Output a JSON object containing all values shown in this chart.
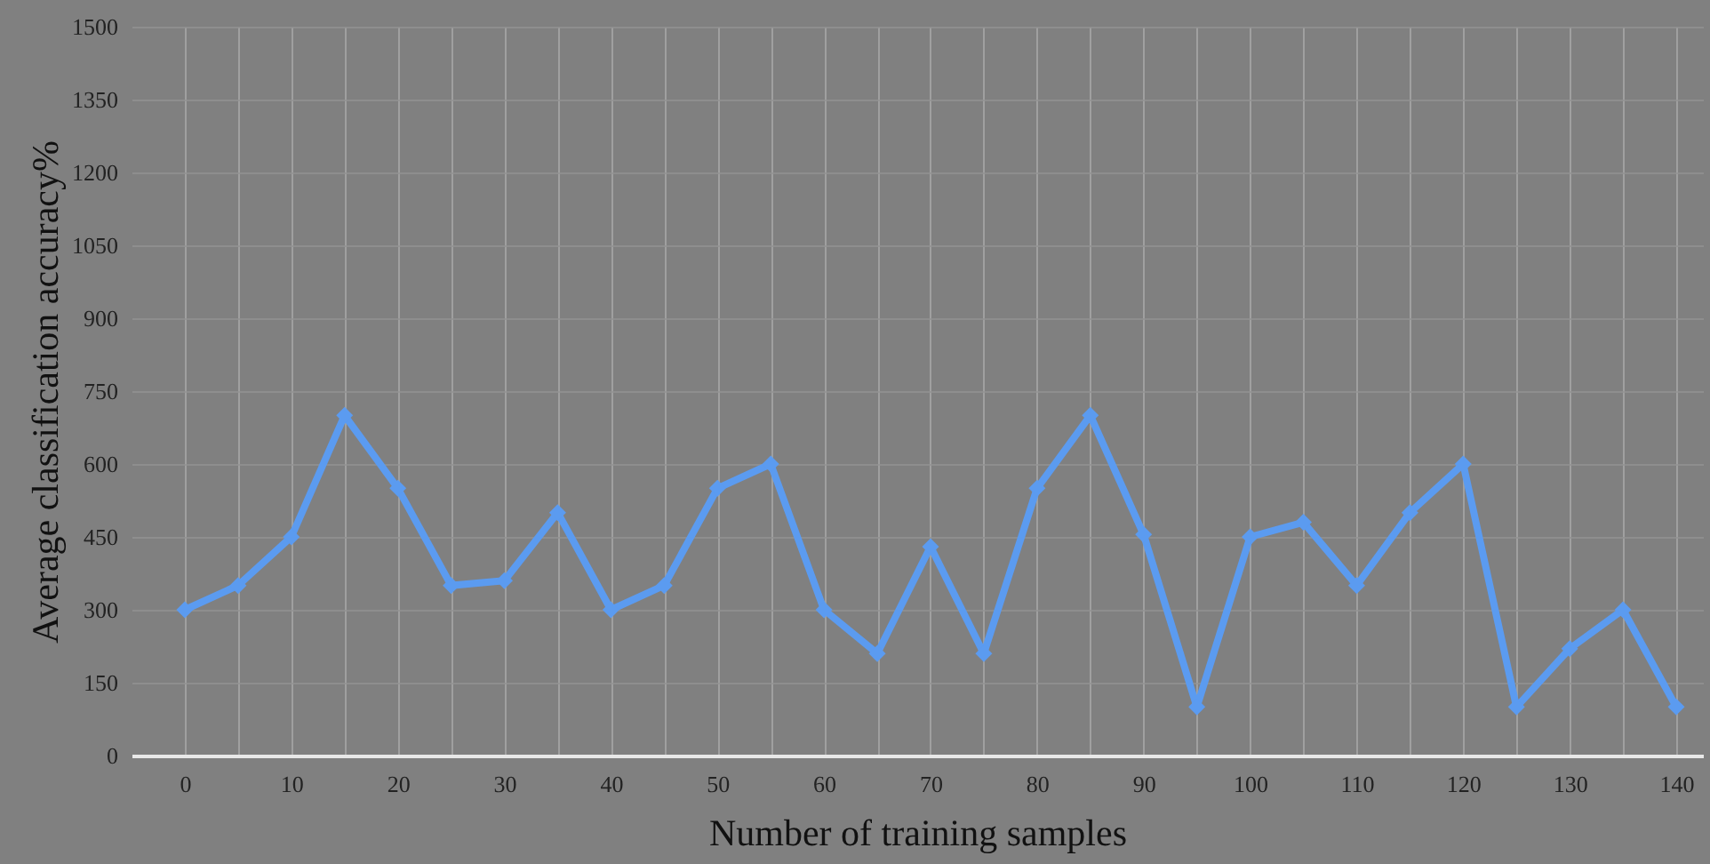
{
  "chart_data": {
    "type": "line",
    "xlabel": "Number of training samples",
    "ylabel": "Average classification accuracy%",
    "x": [
      0,
      5,
      10,
      15,
      20,
      25,
      30,
      35,
      40,
      45,
      50,
      55,
      60,
      65,
      70,
      75,
      80,
      85,
      90,
      95,
      100,
      105,
      110,
      115,
      120,
      125,
      130,
      135,
      140
    ],
    "series": [
      {
        "color": "#5b9bf0",
        "values": [
          300,
          350,
          450,
          700,
          550,
          350,
          360,
          500,
          300,
          350,
          550,
          600,
          300,
          210,
          430,
          210,
          550,
          700,
          455,
          100,
          450,
          480,
          350,
          500,
          600,
          100,
          220,
          300,
          100
        ]
      }
    ],
    "xlim": [
      -5,
      142.5
    ],
    "xticks": [
      0,
      {
        "value": 5,
        "label": null
      },
      10,
      {
        "value": 15,
        "label": null
      },
      20,
      {
        "value": 25,
        "label": null
      },
      30,
      {
        "value": 35,
        "label": null
      },
      40,
      {
        "value": 45,
        "label": null
      },
      50,
      {
        "value": 55,
        "label": null
      },
      60,
      {
        "value": 65,
        "label": null
      },
      70,
      {
        "value": 75,
        "label": null
      },
      80,
      {
        "value": 85,
        "label": null
      },
      90,
      {
        "value": 95,
        "label": null
      },
      100,
      {
        "value": 105,
        "label": null
      },
      110,
      {
        "value": 115,
        "label": null
      },
      120,
      {
        "value": 125,
        "label": null
      },
      130,
      {
        "value": 135,
        "label": null
      },
      140
    ],
    "ylim": [
      0,
      1500
    ],
    "yticks": [
      0,
      150,
      300,
      450,
      600,
      750,
      900,
      1050,
      1200,
      1350,
      1500
    ],
    "grid": true,
    "marker": "diamond",
    "line_style": "solid"
  }
}
